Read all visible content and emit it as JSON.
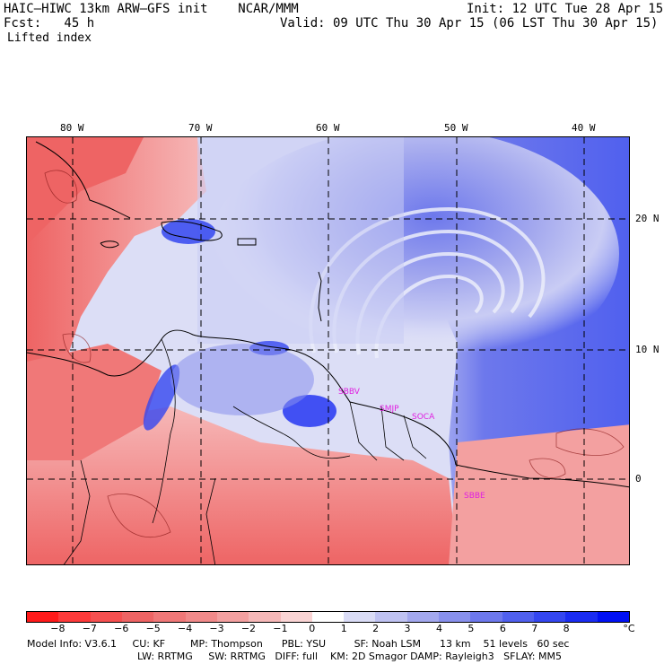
{
  "header": {
    "model_line": "HAIC–HIWC 13km ARW–GFS init    NCAR/MMM",
    "init_line": "Init: 12 UTC Tue 28 Apr 15",
    "fcst_line": "Fcst:   45 h",
    "valid_line": "Valid: 09 UTC Thu 30 Apr 15 (06 LST Thu 30 Apr 15)",
    "field_name": "Lifted index"
  },
  "map": {
    "lon_labels": [
      "80 W",
      "70 W",
      "60 W",
      "50 W",
      "40 W"
    ],
    "lat_labels": [
      "20 N",
      "10 N",
      "0"
    ],
    "stations": [
      "SBBV",
      "SMJP",
      "SOCA",
      "SBBE"
    ]
  },
  "colorbar": {
    "ticks": [
      "−8",
      "−7",
      "−6",
      "−5",
      "−4",
      "−3",
      "−2",
      "−1",
      "0",
      "1",
      "2",
      "3",
      "4",
      "5",
      "6",
      "7",
      "8"
    ],
    "unit": "°C",
    "colors": [
      "#ff1a1a",
      "#fd3a3a",
      "#f65050",
      "#ee6464",
      "#f07878",
      "#f18a8a",
      "#f3a0a0",
      "#f6b8b8",
      "#fad4d4",
      "#ffffff",
      "#dadcf6",
      "#bfc2f2",
      "#a3a8ee",
      "#8890ec",
      "#6d78ec",
      "#5060ee",
      "#3446f0",
      "#1a2cf2",
      "#0010f4"
    ]
  },
  "footer": {
    "line1": "Model Info: V3.6.1     CU: KF        MP: Thompson      PBL: YSU         SF: Noah LSM      13 km    51 levels   60 sec",
    "line2": "LW: RRTMG     SW: RRTMG   DIFF: full    KM: 2D Smagor DAMP: Rayleigh3   SFLAY: MM5"
  }
}
